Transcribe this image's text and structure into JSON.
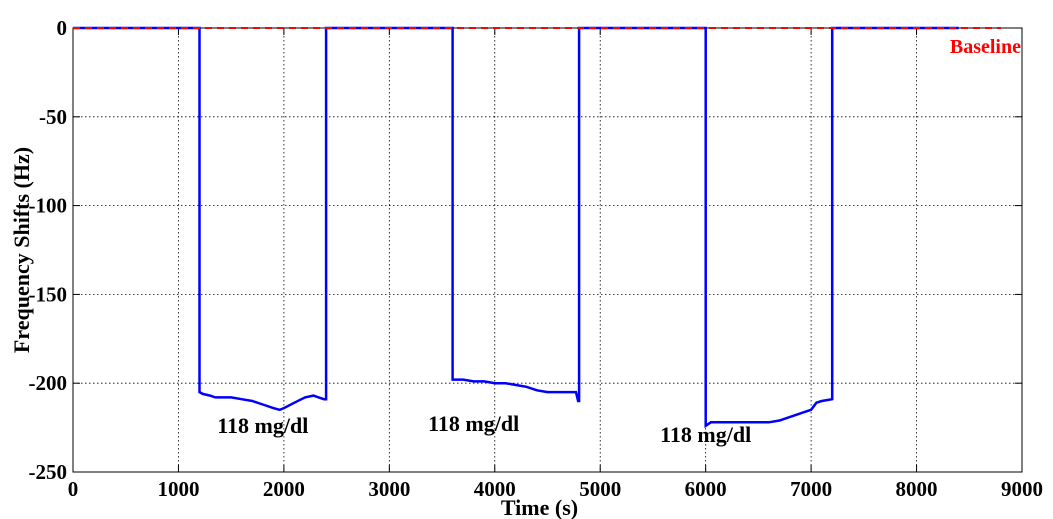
{
  "chart_data": {
    "type": "line",
    "title": "",
    "xlabel": "Time (s)",
    "ylabel": "Frequency Shifts (Hz)",
    "xlim": [
      0,
      9000
    ],
    "ylim": [
      -250,
      0
    ],
    "xticks": [
      0,
      1000,
      2000,
      3000,
      4000,
      5000,
      6000,
      7000,
      8000,
      9000
    ],
    "yticks": [
      0,
      -50,
      -100,
      -150,
      -200,
      -250
    ],
    "grid": true,
    "colors": {
      "signal": "#0000ff",
      "baseline": "#ff0000"
    },
    "series": [
      {
        "name": "",
        "style": "solid",
        "color": "#0000ff",
        "points": [
          [
            0,
            0
          ],
          [
            1200,
            0
          ],
          [
            1200,
            -205
          ],
          [
            1230,
            -206
          ],
          [
            1300,
            -207
          ],
          [
            1350,
            -208
          ],
          [
            1500,
            -208
          ],
          [
            1600,
            -209
          ],
          [
            1700,
            -210
          ],
          [
            1800,
            -212
          ],
          [
            1900,
            -214
          ],
          [
            1960,
            -215
          ],
          [
            2000,
            -214
          ],
          [
            2100,
            -211
          ],
          [
            2200,
            -208
          ],
          [
            2280,
            -207
          ],
          [
            2330,
            -208
          ],
          [
            2380,
            -209
          ],
          [
            2400,
            -209
          ],
          [
            2400,
            0
          ],
          [
            3600,
            0
          ],
          [
            3600,
            -198
          ],
          [
            3700,
            -198
          ],
          [
            3800,
            -199
          ],
          [
            3900,
            -199
          ],
          [
            4000,
            -200
          ],
          [
            4100,
            -200
          ],
          [
            4200,
            -201
          ],
          [
            4300,
            -202
          ],
          [
            4400,
            -204
          ],
          [
            4500,
            -205
          ],
          [
            4700,
            -205
          ],
          [
            4770,
            -205
          ],
          [
            4790,
            -210
          ],
          [
            4800,
            -210
          ],
          [
            4800,
            0
          ],
          [
            6000,
            0
          ],
          [
            6000,
            -224
          ],
          [
            6050,
            -222
          ],
          [
            6200,
            -222
          ],
          [
            6600,
            -222
          ],
          [
            6700,
            -221
          ],
          [
            6800,
            -219
          ],
          [
            6950,
            -216
          ],
          [
            7000,
            -215
          ],
          [
            7050,
            -211
          ],
          [
            7100,
            -210
          ],
          [
            7200,
            -209
          ],
          [
            7200,
            0
          ],
          [
            8400,
            0
          ]
        ]
      },
      {
        "name": "Baseline",
        "style": "dashed",
        "color": "#ff0000",
        "points": [
          [
            0,
            0
          ],
          [
            8800,
            0
          ]
        ]
      }
    ],
    "annotations": [
      {
        "text": "118 mg/dl",
        "x": 1800,
        "y": -228
      },
      {
        "text": "118 mg/dl",
        "x": 3800,
        "y": -227
      },
      {
        "text": "118 mg/dl",
        "x": 6000,
        "y": -233
      }
    ],
    "baseline_label": "Baseline"
  }
}
